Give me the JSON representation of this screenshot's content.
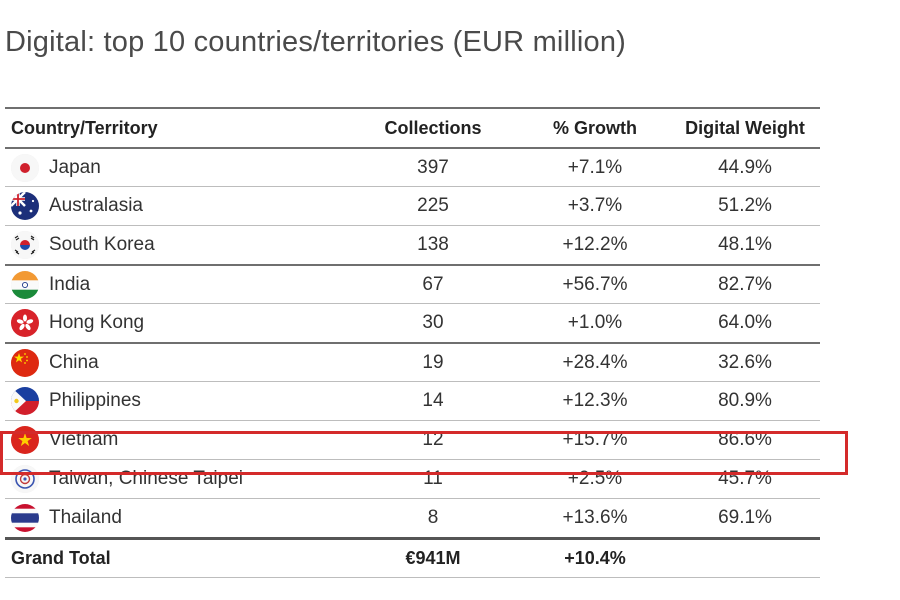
{
  "title": "Digital: top 10 countries/territories (EUR million)",
  "headers": {
    "country": "Country/Territory",
    "collections": "Collections",
    "growth": "% Growth",
    "weight": "Digital Weight"
  },
  "rows": [
    {
      "name": "Japan",
      "flag": "japan-flag-icon",
      "collections": "397",
      "growth": "+7.1%",
      "weight": "44.9%"
    },
    {
      "name": "Australasia",
      "flag": "australia-flag-icon",
      "collections": "225",
      "growth": "+3.7%",
      "weight": "51.2%"
    },
    {
      "name": "South Korea",
      "flag": "south-korea-flag-icon",
      "collections": "138",
      "growth": "+12.2%",
      "weight": "48.1%"
    },
    {
      "name": "India",
      "flag": "india-flag-icon",
      "collections": "67",
      "growth": "+56.7%",
      "weight": "82.7%"
    },
    {
      "name": "Hong Kong",
      "flag": "hong-kong-flag-icon",
      "collections": "30",
      "growth": "+1.0%",
      "weight": "64.0%"
    },
    {
      "name": "China",
      "flag": "china-flag-icon",
      "collections": "19",
      "growth": "+28.4%",
      "weight": "32.6%"
    },
    {
      "name": "Philippines",
      "flag": "philippines-flag-icon",
      "collections": "14",
      "growth": "+12.3%",
      "weight": "80.9%"
    },
    {
      "name": "Vietnam",
      "flag": "vietnam-flag-icon",
      "collections": "12",
      "growth": "+15.7%",
      "weight": "86.6%"
    },
    {
      "name": "Taiwan, Chinese Taipei",
      "flag": "taiwan-emblem-icon",
      "collections": "11",
      "growth": "+2.5%",
      "weight": "45.7%"
    },
    {
      "name": "Thailand",
      "flag": "thailand-flag-icon",
      "collections": "8",
      "growth": "+13.6%",
      "weight": "69.1%"
    }
  ],
  "total": {
    "label": "Grand Total",
    "collections": "€941M",
    "growth": "+10.4%",
    "weight": ""
  },
  "highlight_color": "#d42a2a"
}
